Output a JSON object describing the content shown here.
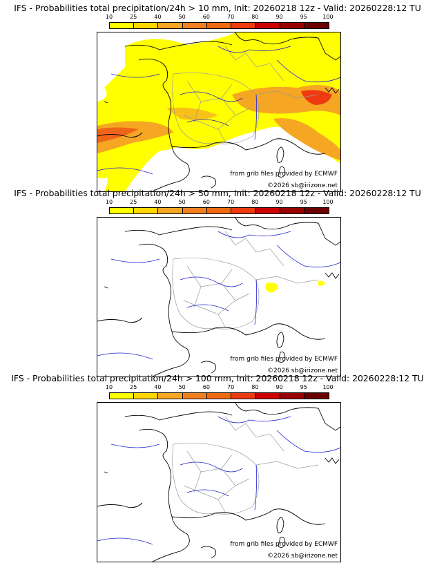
{
  "panels": [
    {
      "title": "IFS - Probabilities total precipitation/24h > 10 mm, Init: 20260218 12z - Valid: 20260228:12 TU",
      "threshold_mm": 10,
      "rain_level": "widespread"
    },
    {
      "title": "IFS - Probabilities total precipitation/24h > 50 mm, Init: 20260218 12z - Valid: 20260228:12 TU",
      "threshold_mm": 50,
      "rain_level": "small-patches"
    },
    {
      "title": "IFS - Probabilities total precipitation/24h > 100 mm, Init: 20260218 12z - Valid: 20260228:12 TU",
      "threshold_mm": 100,
      "rain_level": "none"
    }
  ],
  "colorbar": {
    "ticks": [
      "10",
      "25",
      "40",
      "50",
      "60",
      "70",
      "80",
      "90",
      "95",
      "100"
    ],
    "colors": [
      "#ffff00",
      "#ffd700",
      "#f5a623",
      "#f08020",
      "#ee6a10",
      "#ee3a10",
      "#cc0000",
      "#990000",
      "#6b0000"
    ]
  },
  "credits": {
    "grib": "from grib files provided by ECMWF",
    "copyright": "©2026 sb@irizone.net"
  },
  "map_colors": {
    "coast": "#000000",
    "rivers": "#2020d0",
    "borders": "#9a9a9a",
    "yellow": "#ffff00",
    "orange": "#f5a623",
    "red": "#ee3a10"
  }
}
